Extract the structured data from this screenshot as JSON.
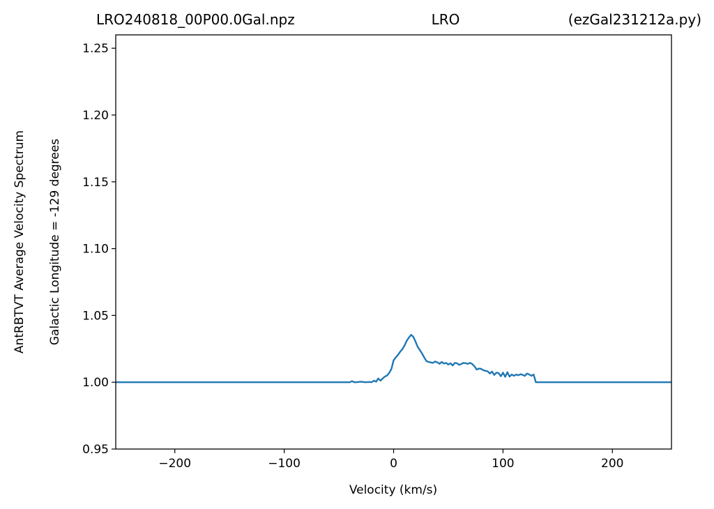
{
  "chart_data": {
    "type": "line",
    "title_left": "LRO240818_00P00.0Gal.npz",
    "title_center": "LRO",
    "title_right": "(ezGal231212a.py)",
    "xlabel": "Velocity (km/s)",
    "ylabel_line1": "AntRBTVT Average Velocity Spectrum",
    "ylabel_line2": "Galactic Longitude = -129 degrees",
    "xlim": [
      -254,
      254
    ],
    "ylim": [
      0.95,
      1.26
    ],
    "x_ticks": [
      -200,
      -100,
      0,
      100,
      200
    ],
    "x_tick_labels": [
      "−200",
      "−100",
      "0",
      "100",
      "200"
    ],
    "y_ticks": [
      0.95,
      1.0,
      1.05,
      1.1,
      1.15,
      1.2,
      1.25
    ],
    "y_tick_labels": [
      "0.95",
      "1.00",
      "1.05",
      "1.10",
      "1.15",
      "1.20",
      "1.25"
    ],
    "grid": false,
    "line_color": "#1f77b4",
    "series": [
      {
        "x": [
          -254,
          -40,
          -38,
          -36,
          -34,
          -30,
          -26,
          -22,
          -20,
          -18,
          -16,
          -14,
          -12,
          -10,
          -8,
          -6,
          -4,
          -2,
          0,
          2,
          4,
          6,
          8,
          10,
          12,
          14,
          16,
          18,
          20,
          22,
          24,
          26,
          28,
          30,
          32,
          34,
          36,
          38,
          40,
          42,
          44,
          46,
          48,
          50,
          52,
          54,
          56,
          58,
          60,
          62,
          64,
          66,
          68,
          70,
          72,
          74,
          76,
          78,
          80,
          82,
          84,
          86,
          88,
          90,
          92,
          94,
          96,
          98,
          100,
          102,
          104,
          106,
          108,
          110,
          112,
          114,
          116,
          118,
          120,
          122,
          124,
          126,
          128,
          130,
          254
        ],
        "y": [
          1.0,
          1.0,
          1.0008,
          1.0,
          1.0,
          1.0004,
          1.0,
          1.0002,
          1.0,
          1.0012,
          1.0004,
          1.0028,
          1.0012,
          1.0028,
          1.0042,
          1.005,
          1.007,
          1.01,
          1.0165,
          1.0185,
          1.0205,
          1.0228,
          1.0248,
          1.0275,
          1.031,
          1.0335,
          1.0355,
          1.034,
          1.0305,
          1.0265,
          1.024,
          1.0215,
          1.0185,
          1.0158,
          1.0152,
          1.0148,
          1.0145,
          1.0155,
          1.0148,
          1.0138,
          1.0152,
          1.014,
          1.0145,
          1.0132,
          1.0142,
          1.0125,
          1.0145,
          1.0142,
          1.013,
          1.0138,
          1.0145,
          1.0142,
          1.0138,
          1.0145,
          1.0135,
          1.0118,
          1.0095,
          1.0102,
          1.01,
          1.009,
          1.0085,
          1.0082,
          1.0065,
          1.008,
          1.0055,
          1.0072,
          1.0068,
          1.0045,
          1.0072,
          1.004,
          1.0075,
          1.0042,
          1.0058,
          1.0048,
          1.0058,
          1.0052,
          1.006,
          1.0055,
          1.0048,
          1.0065,
          1.0058,
          1.0048,
          1.0058,
          1.0,
          1.0
        ]
      }
    ]
  }
}
